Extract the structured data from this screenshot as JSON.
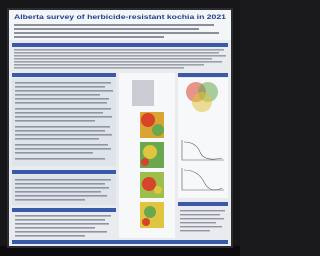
{
  "poster": {
    "title": "Alberta survey of herbicide-resistant kochia in 2021"
  }
}
